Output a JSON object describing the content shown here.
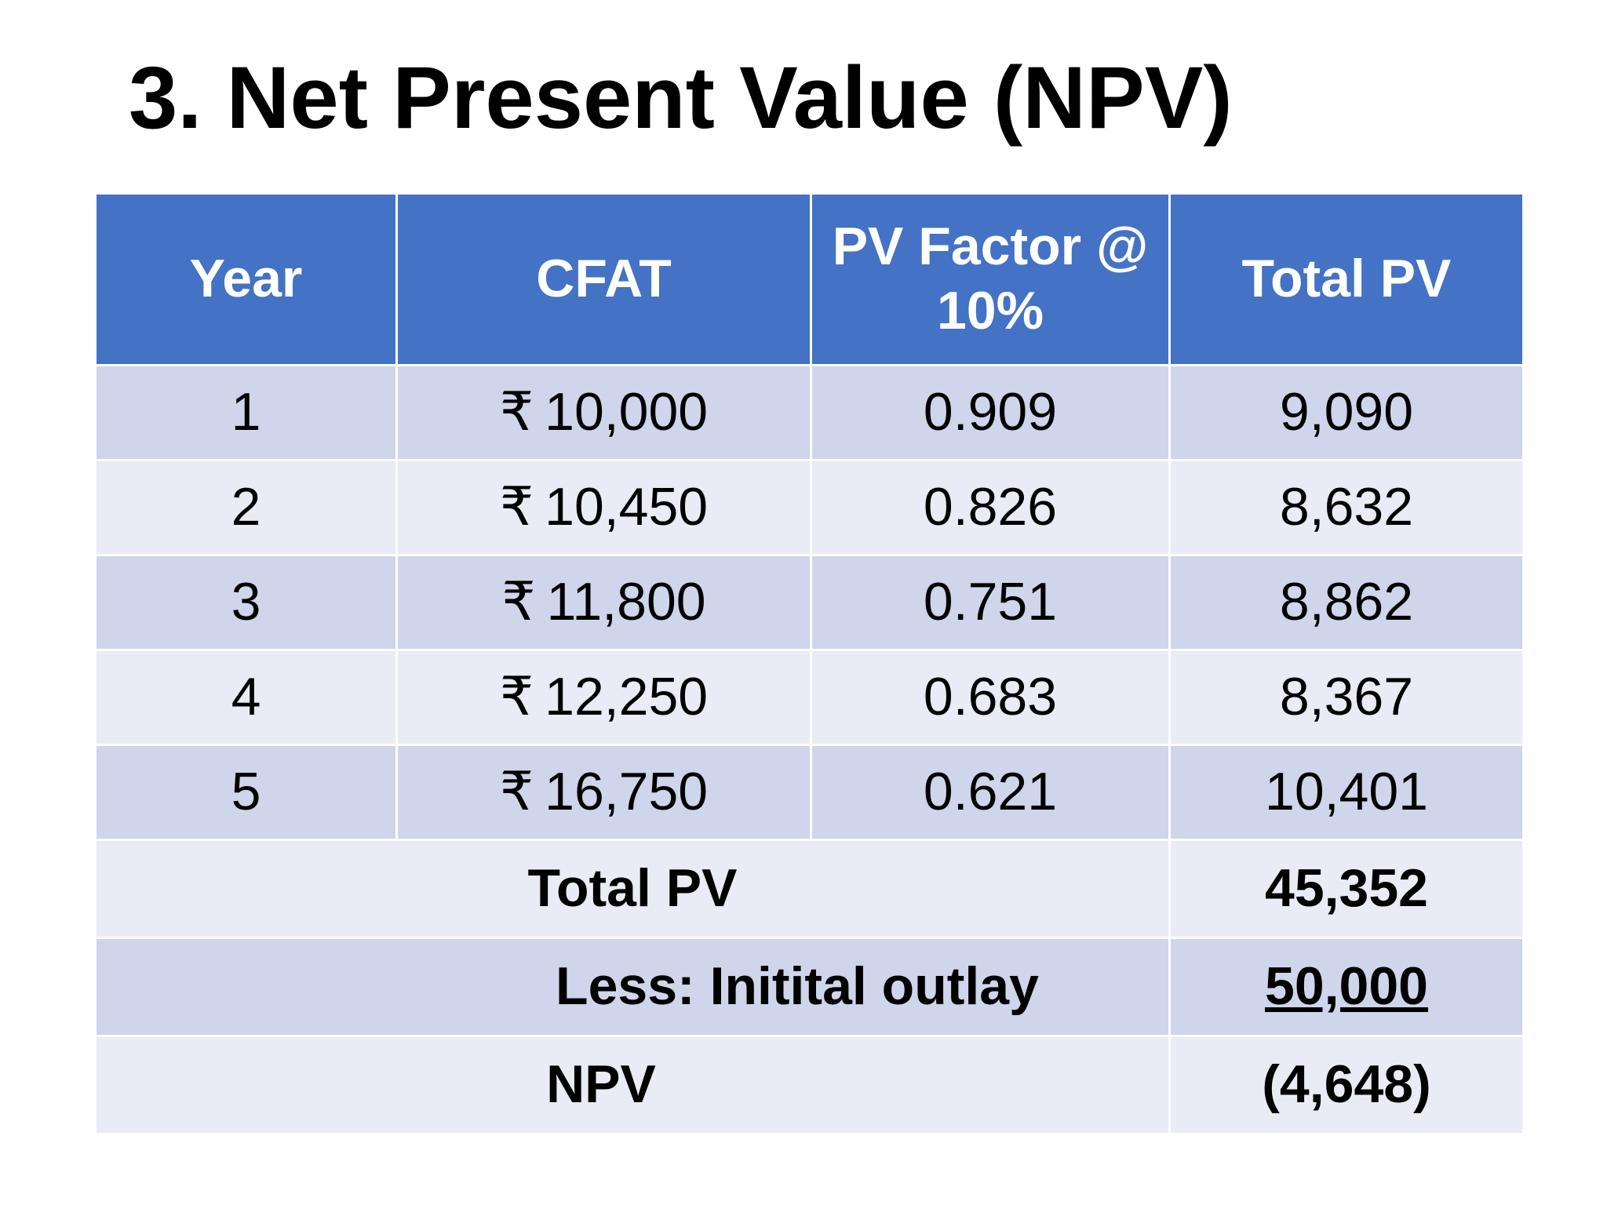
{
  "slide": {
    "title": "3. Net Present Value (NPV)"
  },
  "table": {
    "headers": {
      "year": "Year",
      "cfat": "CFAT",
      "pv_factor_line1": "PV Factor @",
      "pv_factor_line2": "10%",
      "total_pv": "Total PV"
    },
    "currency_symbol": "₹",
    "rows": [
      {
        "year": "1",
        "cfat": "10,000",
        "pv_factor": "0.909",
        "total_pv": "9,090"
      },
      {
        "year": "2",
        "cfat": "10,450",
        "pv_factor": "0.826",
        "total_pv": "8,632"
      },
      {
        "year": "3",
        "cfat": "11,800",
        "pv_factor": "0.751",
        "total_pv": "8,862"
      },
      {
        "year": "4",
        "cfat": "12,250",
        "pv_factor": "0.683",
        "total_pv": "8,367"
      },
      {
        "year": "5",
        "cfat": "16,750",
        "pv_factor": "0.621",
        "total_pv": "10,401"
      }
    ],
    "summary": {
      "total_pv_label": "Total PV",
      "total_pv_value": "45,352",
      "outlay_label": "Less: Initital outlay",
      "outlay_value": "50,000",
      "npv_label": "NPV",
      "npv_value": "(4,648)"
    }
  },
  "colors": {
    "header_bg": "#4472c4",
    "row_dark": "#cfd5ea",
    "row_light": "#e9ebf5",
    "header_text": "#ffffff",
    "body_text": "#000000"
  }
}
